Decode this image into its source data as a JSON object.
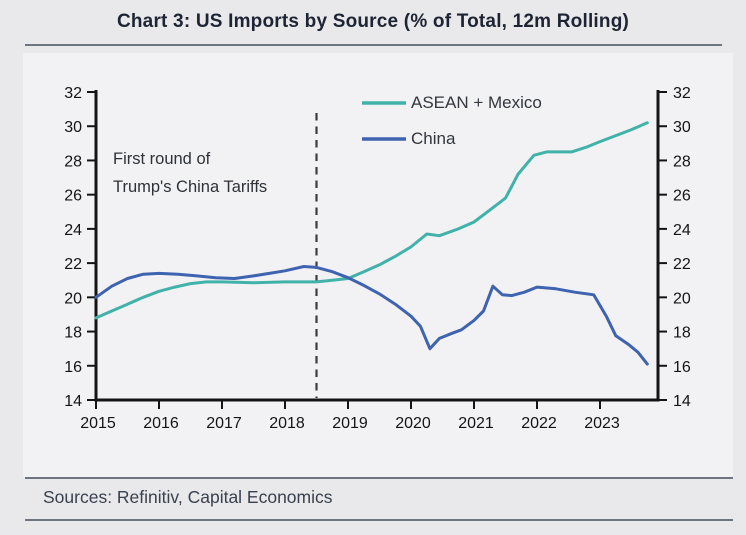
{
  "page": {
    "title": "Chart 3: US Imports by Source (% of Total, 12m Rolling)",
    "sources": "Sources: Refinitiv, Capital Economics"
  },
  "annotation": {
    "line1": "First round of",
    "line2": "Trump's China Tariffs"
  },
  "colors": {
    "page_bg": "#e9e9eb",
    "panel_bg": "#f2f2f4",
    "title_text": "#1d2433",
    "axis": "#141414",
    "rule": "#6e7480",
    "dashed_line": "#3c3c3c",
    "asean": "#41b2aa",
    "china": "#3e63b0"
  },
  "chart_data": {
    "type": "line",
    "title": "US Imports by Source (% of Total, 12m Rolling)",
    "xlabel": "",
    "ylabel": "",
    "xlim": [
      2015,
      2023.92
    ],
    "ylim": [
      14,
      32
    ],
    "x_ticks": [
      2015,
      2016,
      2017,
      2018,
      2019,
      2020,
      2021,
      2022,
      2023
    ],
    "y_ticks": [
      14,
      16,
      18,
      20,
      22,
      24,
      26,
      28,
      30,
      32
    ],
    "grid": false,
    "dual_y_axis": true,
    "legend_position": "top-inside",
    "event_line": {
      "x": 2018.5,
      "style": "dashed",
      "label": "First round of Trump's China Tariffs"
    },
    "series": [
      {
        "name": "ASEAN + Mexico",
        "color": "#41b2aa",
        "points": [
          [
            2015.0,
            18.8
          ],
          [
            2015.25,
            19.2
          ],
          [
            2015.5,
            19.6
          ],
          [
            2015.75,
            20.0
          ],
          [
            2016.0,
            20.35
          ],
          [
            2016.25,
            20.6
          ],
          [
            2016.5,
            20.8
          ],
          [
            2016.75,
            20.9
          ],
          [
            2017.0,
            20.9
          ],
          [
            2017.5,
            20.85
          ],
          [
            2018.0,
            20.9
          ],
          [
            2018.5,
            20.9
          ],
          [
            2018.75,
            21.0
          ],
          [
            2019.0,
            21.1
          ],
          [
            2019.25,
            21.5
          ],
          [
            2019.5,
            21.9
          ],
          [
            2019.75,
            22.4
          ],
          [
            2020.0,
            22.95
          ],
          [
            2020.25,
            23.7
          ],
          [
            2020.45,
            23.6
          ],
          [
            2020.75,
            24.0
          ],
          [
            2021.0,
            24.4
          ],
          [
            2021.25,
            25.1
          ],
          [
            2021.5,
            25.8
          ],
          [
            2021.7,
            27.2
          ],
          [
            2021.95,
            28.3
          ],
          [
            2022.15,
            28.5
          ],
          [
            2022.55,
            28.5
          ],
          [
            2022.8,
            28.8
          ],
          [
            2023.0,
            29.1
          ],
          [
            2023.25,
            29.45
          ],
          [
            2023.5,
            29.8
          ],
          [
            2023.75,
            30.2
          ]
        ]
      },
      {
        "name": "China",
        "color": "#3e63b0",
        "points": [
          [
            2015.0,
            20.0
          ],
          [
            2015.25,
            20.65
          ],
          [
            2015.5,
            21.1
          ],
          [
            2015.75,
            21.35
          ],
          [
            2016.0,
            21.4
          ],
          [
            2016.3,
            21.35
          ],
          [
            2016.6,
            21.25
          ],
          [
            2016.9,
            21.15
          ],
          [
            2017.2,
            21.1
          ],
          [
            2017.5,
            21.25
          ],
          [
            2017.75,
            21.4
          ],
          [
            2018.0,
            21.55
          ],
          [
            2018.3,
            21.8
          ],
          [
            2018.5,
            21.75
          ],
          [
            2018.75,
            21.5
          ],
          [
            2019.0,
            21.15
          ],
          [
            2019.25,
            20.7
          ],
          [
            2019.5,
            20.2
          ],
          [
            2019.75,
            19.6
          ],
          [
            2020.0,
            18.9
          ],
          [
            2020.15,
            18.3
          ],
          [
            2020.3,
            17.0
          ],
          [
            2020.45,
            17.6
          ],
          [
            2020.65,
            17.9
          ],
          [
            2020.8,
            18.1
          ],
          [
            2021.0,
            18.65
          ],
          [
            2021.15,
            19.2
          ],
          [
            2021.3,
            20.65
          ],
          [
            2021.45,
            20.15
          ],
          [
            2021.6,
            20.1
          ],
          [
            2021.8,
            20.3
          ],
          [
            2022.0,
            20.6
          ],
          [
            2022.3,
            20.5
          ],
          [
            2022.6,
            20.3
          ],
          [
            2022.9,
            20.15
          ],
          [
            2023.1,
            18.9
          ],
          [
            2023.25,
            17.75
          ],
          [
            2023.45,
            17.25
          ],
          [
            2023.6,
            16.8
          ],
          [
            2023.75,
            16.1
          ]
        ]
      }
    ]
  }
}
